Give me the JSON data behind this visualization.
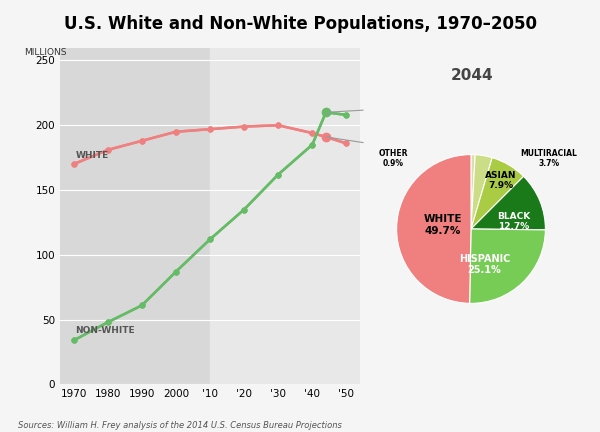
{
  "title": "U.S. White and Non-White Populations, 1970–2050",
  "ylabel": "MILLIONS",
  "source": "Sources: William H. Frey analysis of the 2014 U.S. Census Bureau Projections",
  "years": [
    1970,
    1980,
    1990,
    2000,
    2010,
    2020,
    2030,
    2040,
    2044,
    2050
  ],
  "white_pop": [
    170,
    181,
    188,
    195,
    197,
    199,
    200,
    194,
    191,
    186
  ],
  "nonwhite_pop": [
    34,
    48,
    61,
    87,
    112,
    135,
    162,
    185,
    210,
    208
  ],
  "white_color": "#F08080",
  "nonwhite_color": "#66BB66",
  "bg_color": "#f5f5f5",
  "plot_bg": "#d8d8d8",
  "proj_bg": "#e8e8e8",
  "ylim": [
    0,
    260
  ],
  "yticks": [
    0,
    50,
    100,
    150,
    200,
    250
  ],
  "xtick_labels": [
    "1970",
    "1980",
    "1990",
    "2000",
    "'10",
    "'20",
    "'30",
    "'40",
    "'50"
  ],
  "xtick_positions": [
    1970,
    1980,
    1990,
    2000,
    2010,
    2020,
    2030,
    2040,
    2050
  ],
  "pie_title": "2044",
  "pie_labels": [
    "WHITE",
    "HISPANIC",
    "BLACK",
    "ASIAN",
    "MULTIRACIAL",
    "OTHER"
  ],
  "pie_values": [
    49.7,
    25.1,
    12.7,
    7.9,
    3.7,
    0.9
  ],
  "pie_colors": [
    "#F08080",
    "#77CC55",
    "#1A7A1A",
    "#AACC44",
    "#CCDD88",
    "#DDDDAA"
  ],
  "crossover_year": 2044,
  "crossover_white": 191,
  "crossover_nonwhite": 210
}
